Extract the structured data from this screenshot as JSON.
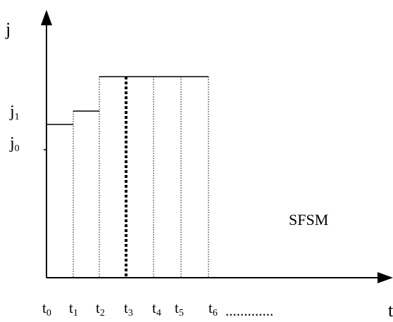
{
  "diagram": {
    "y_axis_label": "j",
    "x_axis_label": "t",
    "annotation": "SFSM",
    "y_ticks": [
      {
        "base": "j",
        "sub": "1"
      },
      {
        "base": "j",
        "sub": "0"
      }
    ],
    "x_ticks": [
      {
        "base": "t",
        "sub": "0"
      },
      {
        "base": "t",
        "sub": "1"
      },
      {
        "base": "t",
        "sub": "2"
      },
      {
        "base": "t",
        "sub": "3"
      },
      {
        "base": "t",
        "sub": "4"
      },
      {
        "base": "t",
        "sub": "5"
      },
      {
        "base": "t",
        "sub": "6"
      }
    ],
    "x_tick_trailer": ".............",
    "colors": {
      "stroke": "#000000",
      "background": "#ffffff"
    }
  }
}
